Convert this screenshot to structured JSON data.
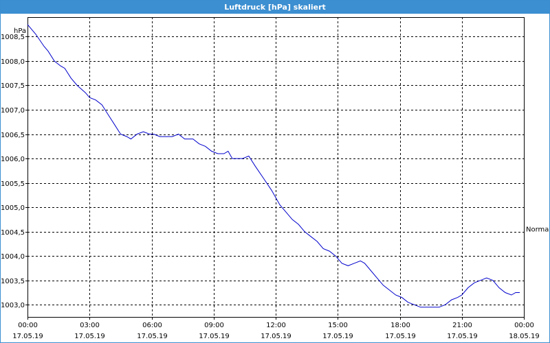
{
  "window": {
    "title": "Luftdruck [hPa] skaliert"
  },
  "chart_data": {
    "type": "line",
    "title": "Luftdruck [hPa] skaliert",
    "ylabel": "hPa",
    "xlabel": "",
    "ylim": [
      1002.75,
      1008.9
    ],
    "xlim": [
      0,
      24
    ],
    "grid": true,
    "y_ticks": [
      {
        "value": 1003.0,
        "label": "1003,0"
      },
      {
        "value": 1003.5,
        "label": "1003,5"
      },
      {
        "value": 1004.0,
        "label": "1004,0"
      },
      {
        "value": 1004.5,
        "label": "1004,5"
      },
      {
        "value": 1005.0,
        "label": "1005,0"
      },
      {
        "value": 1005.5,
        "label": "1005,5"
      },
      {
        "value": 1006.0,
        "label": "1006,0"
      },
      {
        "value": 1006.5,
        "label": "1006,5"
      },
      {
        "value": 1007.0,
        "label": "1007,0"
      },
      {
        "value": 1007.5,
        "label": "1007,5"
      },
      {
        "value": 1008.0,
        "label": "1008,0"
      },
      {
        "value": 1008.5,
        "label": "1008,5"
      }
    ],
    "x_ticks": [
      {
        "value": 0,
        "time": "00:00",
        "date": "17.05.19"
      },
      {
        "value": 3,
        "time": "03:00",
        "date": "17.05.19"
      },
      {
        "value": 6,
        "time": "06:00",
        "date": "17.05.19"
      },
      {
        "value": 9,
        "time": "09:00",
        "date": "17.05.19"
      },
      {
        "value": 12,
        "time": "12:00",
        "date": "17.05.19"
      },
      {
        "value": 15,
        "time": "15:00",
        "date": "17.05.19"
      },
      {
        "value": 18,
        "time": "18:00",
        "date": "17.05.19"
      },
      {
        "value": 21,
        "time": "21:00",
        "date": "17.05.19"
      },
      {
        "value": 24,
        "time": "00:00",
        "date": "18.05.19"
      }
    ],
    "series": [
      {
        "name": "Normal",
        "color": "#0000cc",
        "x": [
          0,
          0.4,
          0.8,
          1.0,
          1.3,
          1.6,
          1.8,
          2.1,
          2.4,
          2.8,
          3.0,
          3.3,
          3.6,
          3.9,
          4.2,
          4.5,
          4.8,
          5.0,
          5.3,
          5.6,
          5.9,
          6.1,
          6.4,
          6.7,
          7.0,
          7.3,
          7.6,
          8.0,
          8.3,
          8.6,
          8.9,
          9.2,
          9.5,
          9.7,
          9.9,
          10.1,
          10.4,
          10.7,
          11.0,
          11.4,
          11.8,
          12.2,
          12.5,
          12.8,
          13.1,
          13.4,
          13.7,
          14.0,
          14.3,
          14.6,
          14.9,
          15.2,
          15.5,
          15.8,
          16.1,
          16.3,
          16.6,
          16.9,
          17.2,
          17.5,
          17.8,
          18.1,
          18.4,
          18.7,
          19.0,
          19.3,
          19.6,
          19.9,
          20.2,
          20.5,
          20.8,
          21.0,
          21.3,
          21.6,
          21.9,
          22.2,
          22.5,
          22.8,
          23.1,
          23.4,
          23.6,
          23.8
        ],
        "values": [
          1008.75,
          1008.55,
          1008.3,
          1008.2,
          1008.0,
          1007.9,
          1007.85,
          1007.65,
          1007.5,
          1007.35,
          1007.25,
          1007.2,
          1007.1,
          1006.9,
          1006.7,
          1006.5,
          1006.45,
          1006.4,
          1006.5,
          1006.55,
          1006.5,
          1006.5,
          1006.45,
          1006.45,
          1006.45,
          1006.5,
          1006.4,
          1006.4,
          1006.3,
          1006.25,
          1006.15,
          1006.1,
          1006.1,
          1006.15,
          1006.0,
          1006.0,
          1006.0,
          1006.05,
          1005.85,
          1005.6,
          1005.35,
          1005.05,
          1004.9,
          1004.75,
          1004.65,
          1004.5,
          1004.4,
          1004.3,
          1004.15,
          1004.1,
          1004.0,
          1003.85,
          1003.8,
          1003.85,
          1003.9,
          1003.85,
          1003.7,
          1003.55,
          1003.4,
          1003.3,
          1003.2,
          1003.15,
          1003.05,
          1003.0,
          1002.95,
          1002.95,
          1002.95,
          1002.95,
          1003.0,
          1003.1,
          1003.15,
          1003.2,
          1003.35,
          1003.45,
          1003.5,
          1003.55,
          1003.5,
          1003.35,
          1003.25,
          1003.2,
          1003.25,
          1003.25
        ]
      }
    ]
  }
}
